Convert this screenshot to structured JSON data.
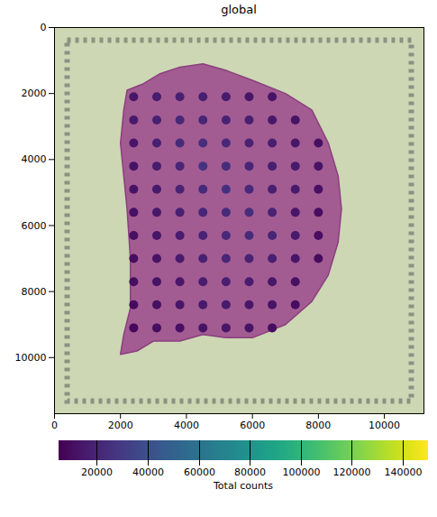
{
  "chart_data": {
    "type": "scatter",
    "title": "global",
    "xlim": [
      0,
      11200
    ],
    "ylim": [
      11700,
      0
    ],
    "xticks": [
      0,
      2000,
      4000,
      6000,
      8000,
      10000
    ],
    "yticks": [
      0,
      2000,
      4000,
      6000,
      8000,
      10000
    ],
    "tissue_outline": [
      [
        2200,
        1900
      ],
      [
        2700,
        1700
      ],
      [
        3200,
        1400
      ],
      [
        3800,
        1200
      ],
      [
        4500,
        1100
      ],
      [
        5200,
        1300
      ],
      [
        6000,
        1600
      ],
      [
        7000,
        2000
      ],
      [
        7800,
        2500
      ],
      [
        8300,
        3500
      ],
      [
        8600,
        4500
      ],
      [
        8700,
        5500
      ],
      [
        8600,
        6500
      ],
      [
        8300,
        7500
      ],
      [
        7800,
        8300
      ],
      [
        7000,
        9000
      ],
      [
        6000,
        9400
      ],
      [
        5200,
        9400
      ],
      [
        4500,
        9300
      ],
      [
        3800,
        9500
      ],
      [
        3000,
        9500
      ],
      [
        2500,
        9800
      ],
      [
        2000,
        9900
      ],
      [
        2100,
        9300
      ],
      [
        2300,
        8500
      ],
      [
        2300,
        7000
      ],
      [
        2200,
        5500
      ],
      [
        2100,
        4500
      ],
      [
        2000,
        3500
      ],
      [
        2100,
        2500
      ]
    ],
    "spots": {
      "x": [
        2400,
        3100,
        3800,
        4500,
        5200,
        5900,
        6600,
        2400,
        3100,
        3800,
        4500,
        5200,
        5900,
        6600,
        7300,
        2400,
        3100,
        3800,
        4500,
        5200,
        5900,
        6600,
        7300,
        8000,
        2400,
        3100,
        3800,
        4500,
        5200,
        5900,
        6600,
        7300,
        8000,
        2400,
        3100,
        3800,
        4500,
        5200,
        5900,
        6600,
        7300,
        8000,
        2400,
        3100,
        3800,
        4500,
        5200,
        5900,
        6600,
        7300,
        8000,
        2400,
        3100,
        3800,
        4500,
        5200,
        5900,
        6600,
        7300,
        8000,
        2400,
        3100,
        3800,
        4500,
        5200,
        5900,
        6600,
        7300,
        8000,
        2400,
        3100,
        3800,
        4500,
        5200,
        5900,
        6600,
        7300,
        2400,
        3100,
        3800,
        4500,
        5200,
        5900,
        6600,
        7300,
        2400,
        3100,
        3800,
        4500,
        5200,
        5900,
        6600
      ],
      "y": [
        2100,
        2100,
        2100,
        2100,
        2100,
        2100,
        2100,
        2800,
        2800,
        2800,
        2800,
        2800,
        2800,
        2800,
        2800,
        3500,
        3500,
        3500,
        3500,
        3500,
        3500,
        3500,
        3500,
        3500,
        4200,
        4200,
        4200,
        4200,
        4200,
        4200,
        4200,
        4200,
        4200,
        4900,
        4900,
        4900,
        4900,
        4900,
        4900,
        4900,
        4900,
        4900,
        5600,
        5600,
        5600,
        5600,
        5600,
        5600,
        5600,
        5600,
        5600,
        6300,
        6300,
        6300,
        6300,
        6300,
        6300,
        6300,
        6300,
        6300,
        7000,
        7000,
        7000,
        7000,
        7000,
        7000,
        7000,
        7000,
        7000,
        7700,
        7700,
        7700,
        7700,
        7700,
        7700,
        7700,
        7700,
        8400,
        8400,
        8400,
        8400,
        8400,
        8400,
        8400,
        8400,
        9100,
        9100,
        9100,
        9100,
        9100,
        9100,
        9100
      ],
      "values": [
        14000,
        16000,
        18000,
        17000,
        15000,
        13000,
        12000,
        15000,
        18000,
        21000,
        20000,
        19000,
        17000,
        14000,
        12000,
        13000,
        17000,
        22000,
        24000,
        21000,
        19000,
        16000,
        14000,
        11000,
        12000,
        16000,
        20000,
        26000,
        23000,
        20000,
        17000,
        15000,
        12000,
        12000,
        15000,
        19000,
        22000,
        25000,
        21000,
        18000,
        15000,
        11000,
        11000,
        14000,
        18000,
        20000,
        22000,
        24000,
        19000,
        14000,
        10000,
        11000,
        13000,
        16000,
        19000,
        21000,
        23000,
        20000,
        15000,
        10000,
        10000,
        12000,
        15000,
        18000,
        20000,
        19000,
        17000,
        13000,
        9000,
        10000,
        12000,
        14000,
        16000,
        17000,
        16000,
        14000,
        11000,
        9000,
        11000,
        13000,
        15000,
        15000,
        14000,
        12000,
        10000,
        8000,
        10000,
        11000,
        12000,
        13000,
        12000,
        10000
      ]
    },
    "colorbar": {
      "label": "Total counts",
      "range": [
        5000,
        150000
      ],
      "ticks": [
        20000,
        40000,
        60000,
        80000,
        100000,
        120000,
        140000
      ]
    }
  }
}
